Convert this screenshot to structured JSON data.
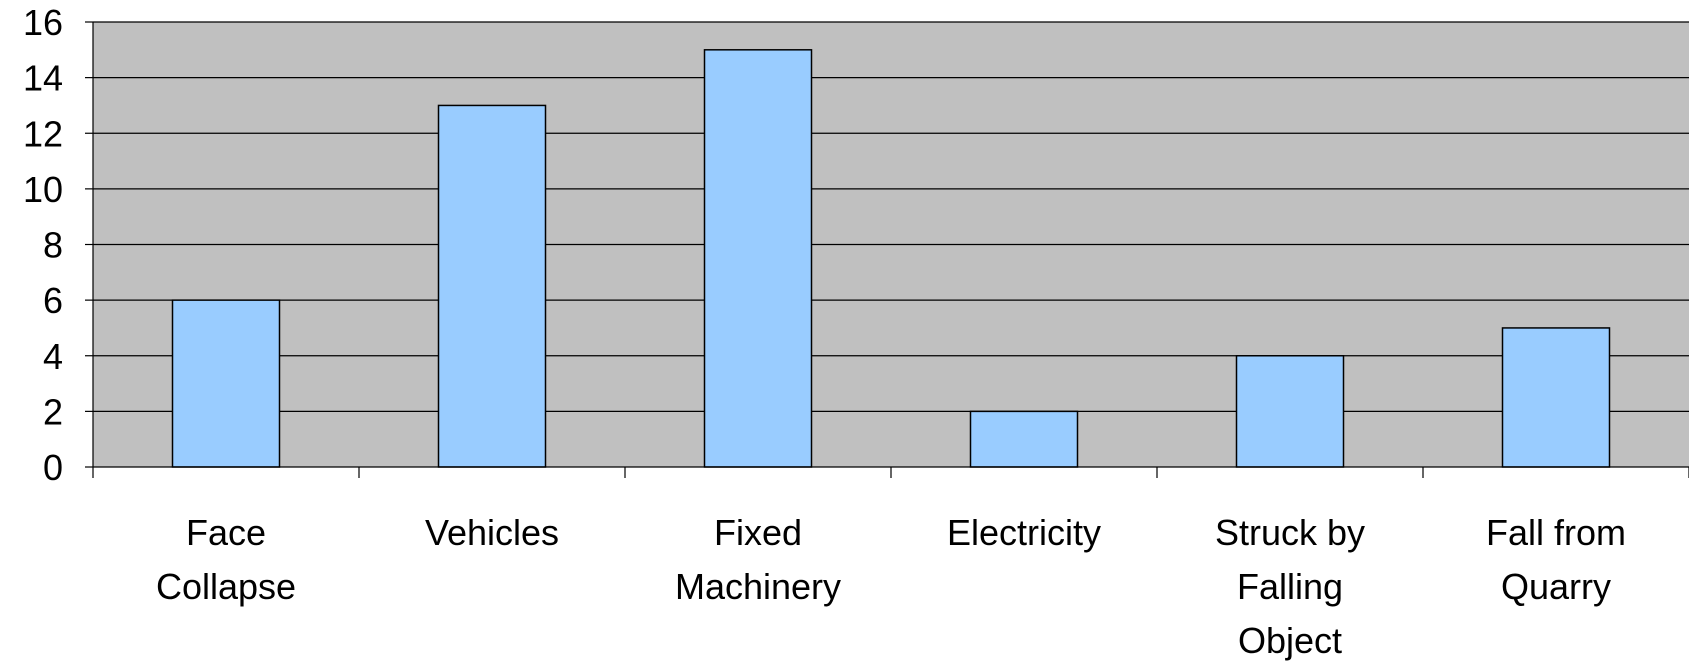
{
  "chart_data": {
    "type": "bar",
    "categories": [
      [
        "Face",
        "Collapse"
      ],
      [
        "Vehicles"
      ],
      [
        "Fixed",
        "Machinery"
      ],
      [
        "Electricity"
      ],
      [
        "Struck by",
        "Falling",
        "Object"
      ],
      [
        "Fall from",
        "Quarry"
      ]
    ],
    "values": [
      6,
      13,
      15,
      2,
      4,
      5
    ],
    "yticks": [
      "0",
      "2",
      "4",
      "6",
      "8",
      "10",
      "12",
      "14",
      "16"
    ],
    "ylim": [
      0,
      16
    ],
    "title": "",
    "xlabel": "",
    "ylabel": "",
    "grid": true,
    "legend": "none",
    "colors": {
      "bar_fill": "#99ccff",
      "bar_stroke": "#000000",
      "plot_background": "#c0c0c0",
      "gridline": "#000000"
    }
  }
}
